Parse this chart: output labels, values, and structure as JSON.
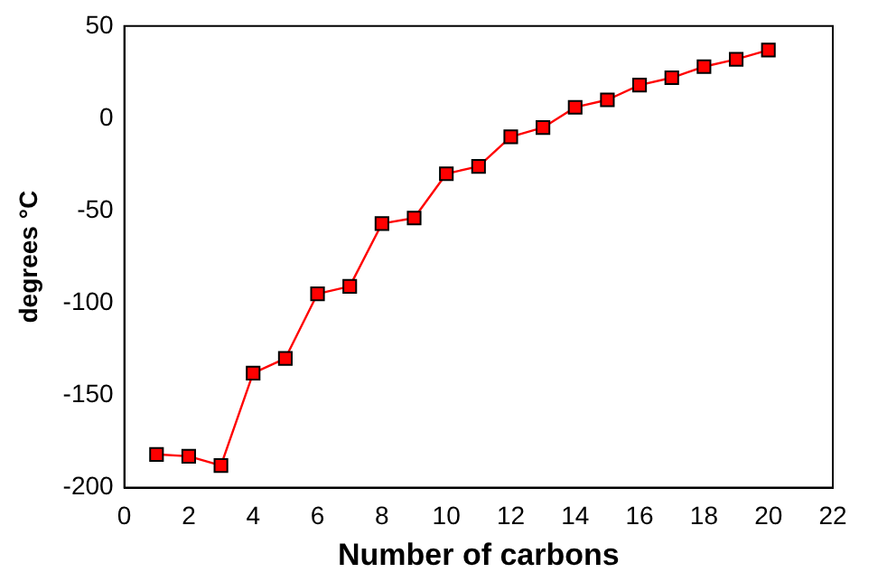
{
  "chart_data": {
    "type": "line",
    "xlabel": "Number of carbons",
    "ylabel": "degrees °C",
    "x": [
      1,
      2,
      3,
      4,
      5,
      6,
      7,
      8,
      9,
      10,
      11,
      12,
      13,
      14,
      15,
      16,
      17,
      18,
      19,
      20
    ],
    "series": [
      {
        "color": "#ff0000",
        "values": [
          -182,
          -183,
          -188,
          -138,
          -130,
          -95,
          -91,
          -57,
          -54,
          -30,
          -26,
          -10,
          -5,
          6,
          10,
          18,
          22,
          28,
          32,
          37
        ]
      }
    ],
    "xlim": [
      0,
      22
    ],
    "xticks": [
      0,
      2,
      4,
      6,
      8,
      10,
      12,
      14,
      16,
      18,
      20,
      22
    ],
    "ylim": [
      -200,
      50
    ],
    "yticks": [
      -200,
      -150,
      -100,
      -50,
      0,
      50
    ],
    "grid": false,
    "legend": false,
    "marker": "square",
    "line_style": "solid"
  }
}
